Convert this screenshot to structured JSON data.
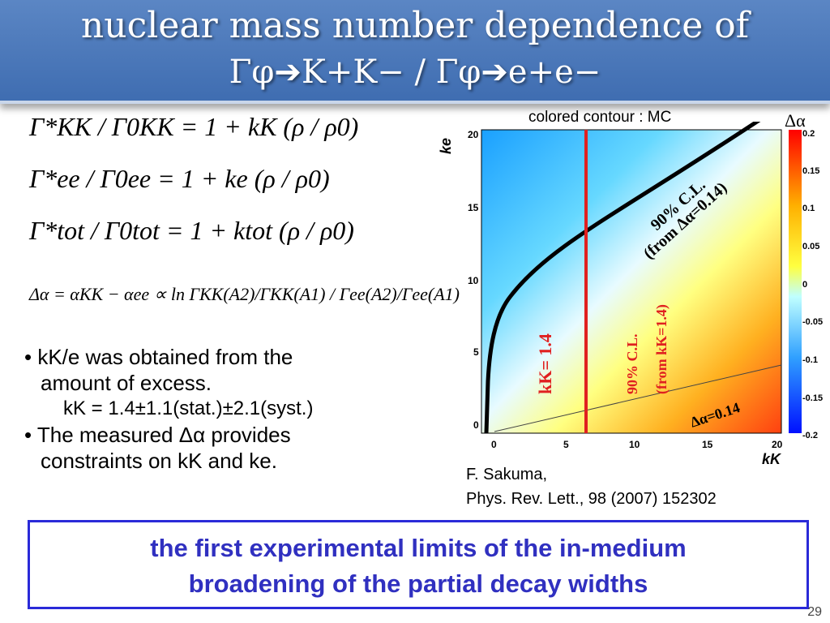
{
  "header": {
    "line1": "nuclear mass number dependence of",
    "line2": "Γφ➔K+K− / Γφ➔e+e−"
  },
  "equations": {
    "eq1": "Γ*KK / Γ0KK = 1 + kK (ρ / ρ0)",
    "eq2": "Γ*ee / Γ0ee = 1 + ke (ρ / ρ0)",
    "eq3": "Γ*tot / Γ0tot = 1 + ktot (ρ / ρ0)",
    "eq4": "Δα = αKK − αee ∝ ln ΓKK(A2)/ΓKK(A1) / Γee(A2)/Γee(A1)"
  },
  "bullets": {
    "b1_line1": "kK/e was obtained from the",
    "b1_line2": "amount of excess.",
    "b1_line3": "kK = 1.4±1.1(stat.)±2.1(syst.)",
    "b2_line1": "The measured Δα provides",
    "b2_line2": "constraints on kK and ke."
  },
  "plot": {
    "contour_label": "colored contour : MC",
    "colorbar_title": "Δα",
    "y_axis_label": "ke",
    "x_axis_label": "kK",
    "x_ticks": [
      "0",
      "5",
      "10",
      "15",
      "20"
    ],
    "y_ticks": [
      "0",
      "5",
      "10",
      "15",
      "20"
    ],
    "colorbar_ticks": [
      "0.2",
      "0.15",
      "0.1",
      "0.05",
      "0",
      "-0.05",
      "-0.1",
      "-0.15",
      "-0.2"
    ],
    "annot_black_1": "90% C.L.",
    "annot_black_2": "(from Δα=0.14)",
    "annot_red_kk": "kK= 1.4",
    "annot_red_1": "90% C.L.",
    "annot_red_2": "(from kK=1.4)",
    "annot_da": "Δα=0.14"
  },
  "reference": {
    "line1": "F. Sakuma,",
    "line2": "Phys. Rev. Lett., 98 (2007) 152302"
  },
  "conclusion": {
    "line1": "the first experimental limits of the in-medium",
    "line2": "broadening of the partial decay widths"
  },
  "page_number": "29",
  "colors": {
    "header": "#4a78bb",
    "box_border": "#2a2ad8",
    "box_text": "#3030c0",
    "red_line": "#e02020"
  }
}
